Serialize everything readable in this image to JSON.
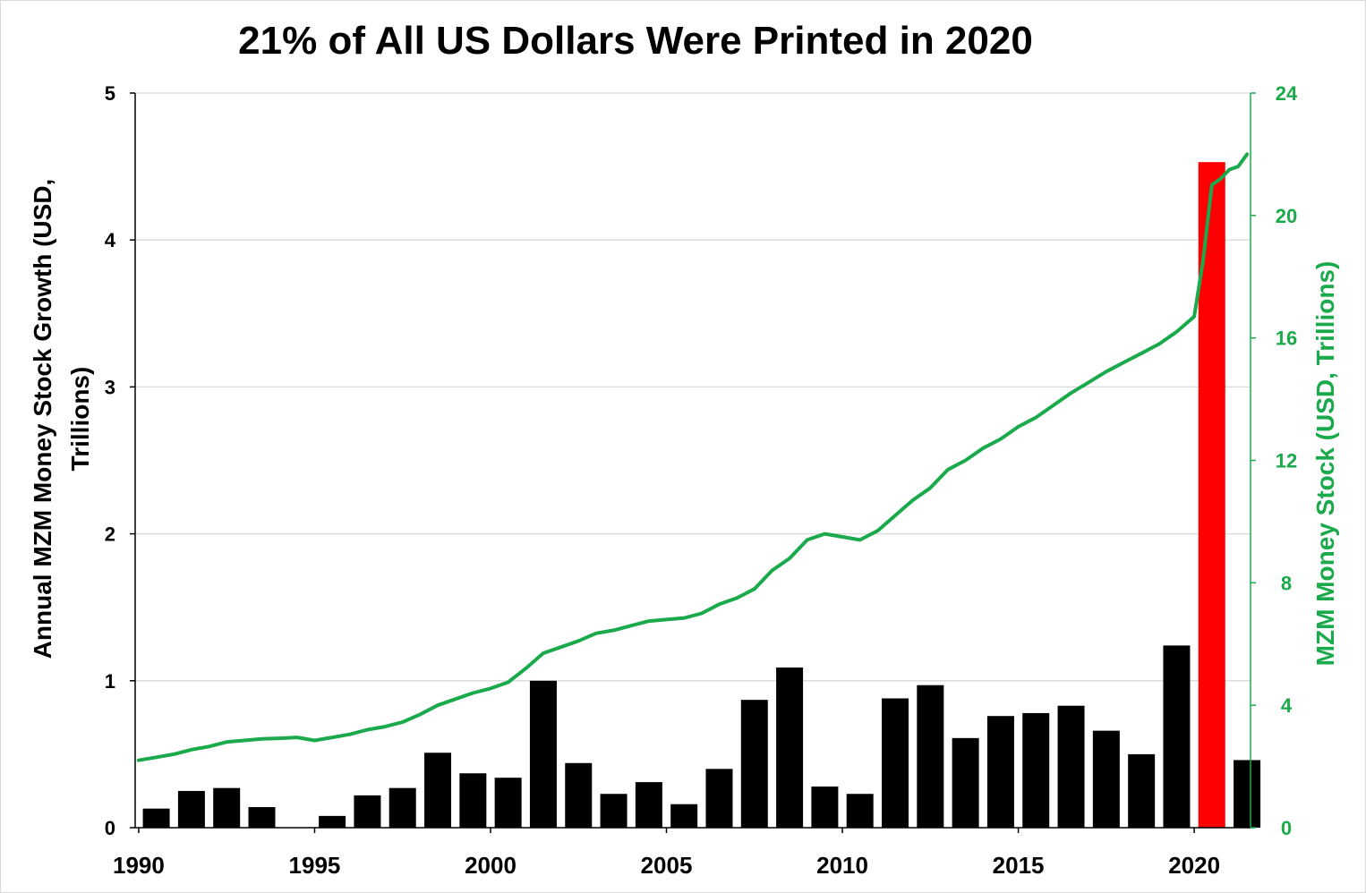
{
  "chart_data": {
    "type": "bar",
    "title": "21% of All US Dollars Were Printed in 2020",
    "ylabel_left_line1": "Annual MZM Money Stock Growth (USD,",
    "ylabel_left_line2": "Trillions)",
    "ylabel_right": "MZM Money Stock (USD, Trillions)",
    "x_ticks": [
      "1990",
      "1995",
      "2000",
      "2005",
      "2010",
      "2015",
      "2020"
    ],
    "y_left_ticks": [
      "0",
      "1",
      "2",
      "3",
      "4",
      "5"
    ],
    "y_right_ticks": [
      "0",
      "4",
      "8",
      "12",
      "16",
      "20",
      "24"
    ],
    "ylim_left": [
      0,
      5
    ],
    "ylim_right": [
      0,
      24
    ],
    "xlim": [
      1989.9,
      2021.6
    ],
    "grid": "horizontal",
    "colors": {
      "bar": "#000000",
      "highlight_bar": "#ff0000",
      "line": "#1aaa4b",
      "grid": "#d9d9d9",
      "axis": "#000000",
      "right_axis": "#1aaa4b"
    },
    "bars": {
      "name": "Annual MZM Money Stock Growth",
      "highlight_year": 2020,
      "years": [
        1990,
        1991,
        1992,
        1993,
        1994,
        1995,
        1996,
        1997,
        1998,
        1999,
        2000,
        2001,
        2002,
        2003,
        2004,
        2005,
        2006,
        2007,
        2008,
        2009,
        2010,
        2011,
        2012,
        2013,
        2014,
        2015,
        2016,
        2017,
        2018,
        2019,
        2020,
        2021
      ],
      "values": [
        0.13,
        0.25,
        0.27,
        0.14,
        0.0,
        0.08,
        0.22,
        0.27,
        0.51,
        0.37,
        0.34,
        1.0,
        0.44,
        0.23,
        0.31,
        0.16,
        0.4,
        0.87,
        1.09,
        0.28,
        0.23,
        0.88,
        0.97,
        0.61,
        0.76,
        0.78,
        0.83,
        0.66,
        0.5,
        1.24,
        4.53,
        0.46
      ]
    },
    "line": {
      "name": "MZM Money Stock",
      "x": [
        1990.0,
        1990.5,
        1991.0,
        1991.5,
        1992.0,
        1992.5,
        1993.0,
        1993.5,
        1994.0,
        1994.5,
        1995.0,
        1995.5,
        1996.0,
        1996.5,
        1997.0,
        1997.5,
        1998.0,
        1998.5,
        1999.0,
        1999.5,
        2000.0,
        2000.5,
        2001.0,
        2001.5,
        2002.0,
        2002.5,
        2003.0,
        2003.5,
        2004.0,
        2004.5,
        2005.0,
        2005.5,
        2006.0,
        2006.5,
        2007.0,
        2007.5,
        2008.0,
        2008.5,
        2009.0,
        2009.5,
        2010.0,
        2010.5,
        2011.0,
        2011.5,
        2012.0,
        2012.5,
        2013.0,
        2013.5,
        2014.0,
        2014.5,
        2015.0,
        2015.5,
        2016.0,
        2016.5,
        2017.0,
        2017.5,
        2018.0,
        2018.5,
        2019.0,
        2019.5,
        2020.0,
        2020.25,
        2020.5,
        2020.75,
        2021.0,
        2021.25,
        2021.5
      ],
      "y": [
        2.2,
        2.3,
        2.4,
        2.55,
        2.65,
        2.8,
        2.85,
        2.9,
        2.92,
        2.95,
        2.85,
        2.95,
        3.05,
        3.2,
        3.3,
        3.45,
        3.7,
        4.0,
        4.2,
        4.4,
        4.55,
        4.75,
        5.2,
        5.7,
        5.9,
        6.1,
        6.35,
        6.45,
        6.6,
        6.75,
        6.8,
        6.85,
        7.0,
        7.3,
        7.5,
        7.8,
        8.4,
        8.8,
        9.4,
        9.6,
        9.5,
        9.4,
        9.7,
        10.2,
        10.7,
        11.1,
        11.7,
        12.0,
        12.4,
        12.7,
        13.1,
        13.4,
        13.8,
        14.2,
        14.55,
        14.9,
        15.2,
        15.5,
        15.8,
        16.2,
        16.7,
        18.5,
        21.0,
        21.2,
        21.5,
        21.6,
        22.0
      ]
    }
  }
}
